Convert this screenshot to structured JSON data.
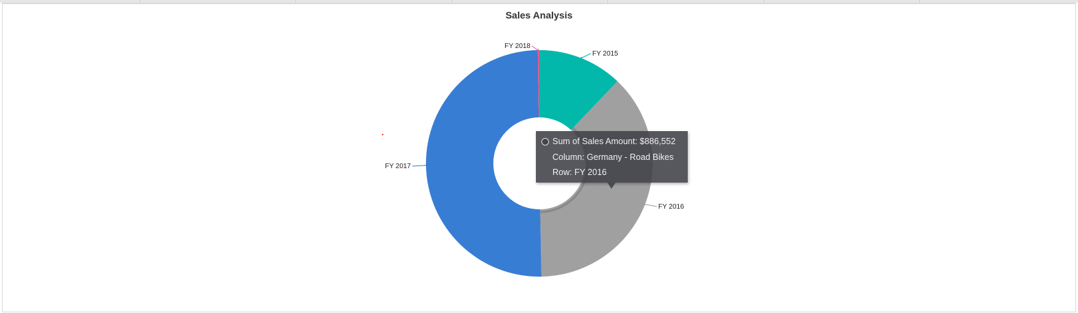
{
  "chart_data": {
    "type": "pie",
    "variant": "donut",
    "title": "Sales Analysis",
    "categories": [
      "FY 2015",
      "FY 2016",
      "FY 2017",
      "FY 2018"
    ],
    "values": [
      285000,
      886552,
      1180000,
      5000
    ],
    "colors": [
      "#01B8AA",
      "#A0A0A0",
      "#377DD3",
      "#E8538A"
    ],
    "legend": "none",
    "data_labels": "category"
  },
  "tooltip": {
    "line1": "Sum of Sales Amount: $886,552",
    "line2": "Column: Germany - Road Bikes",
    "line3": "Row: FY 2016"
  }
}
